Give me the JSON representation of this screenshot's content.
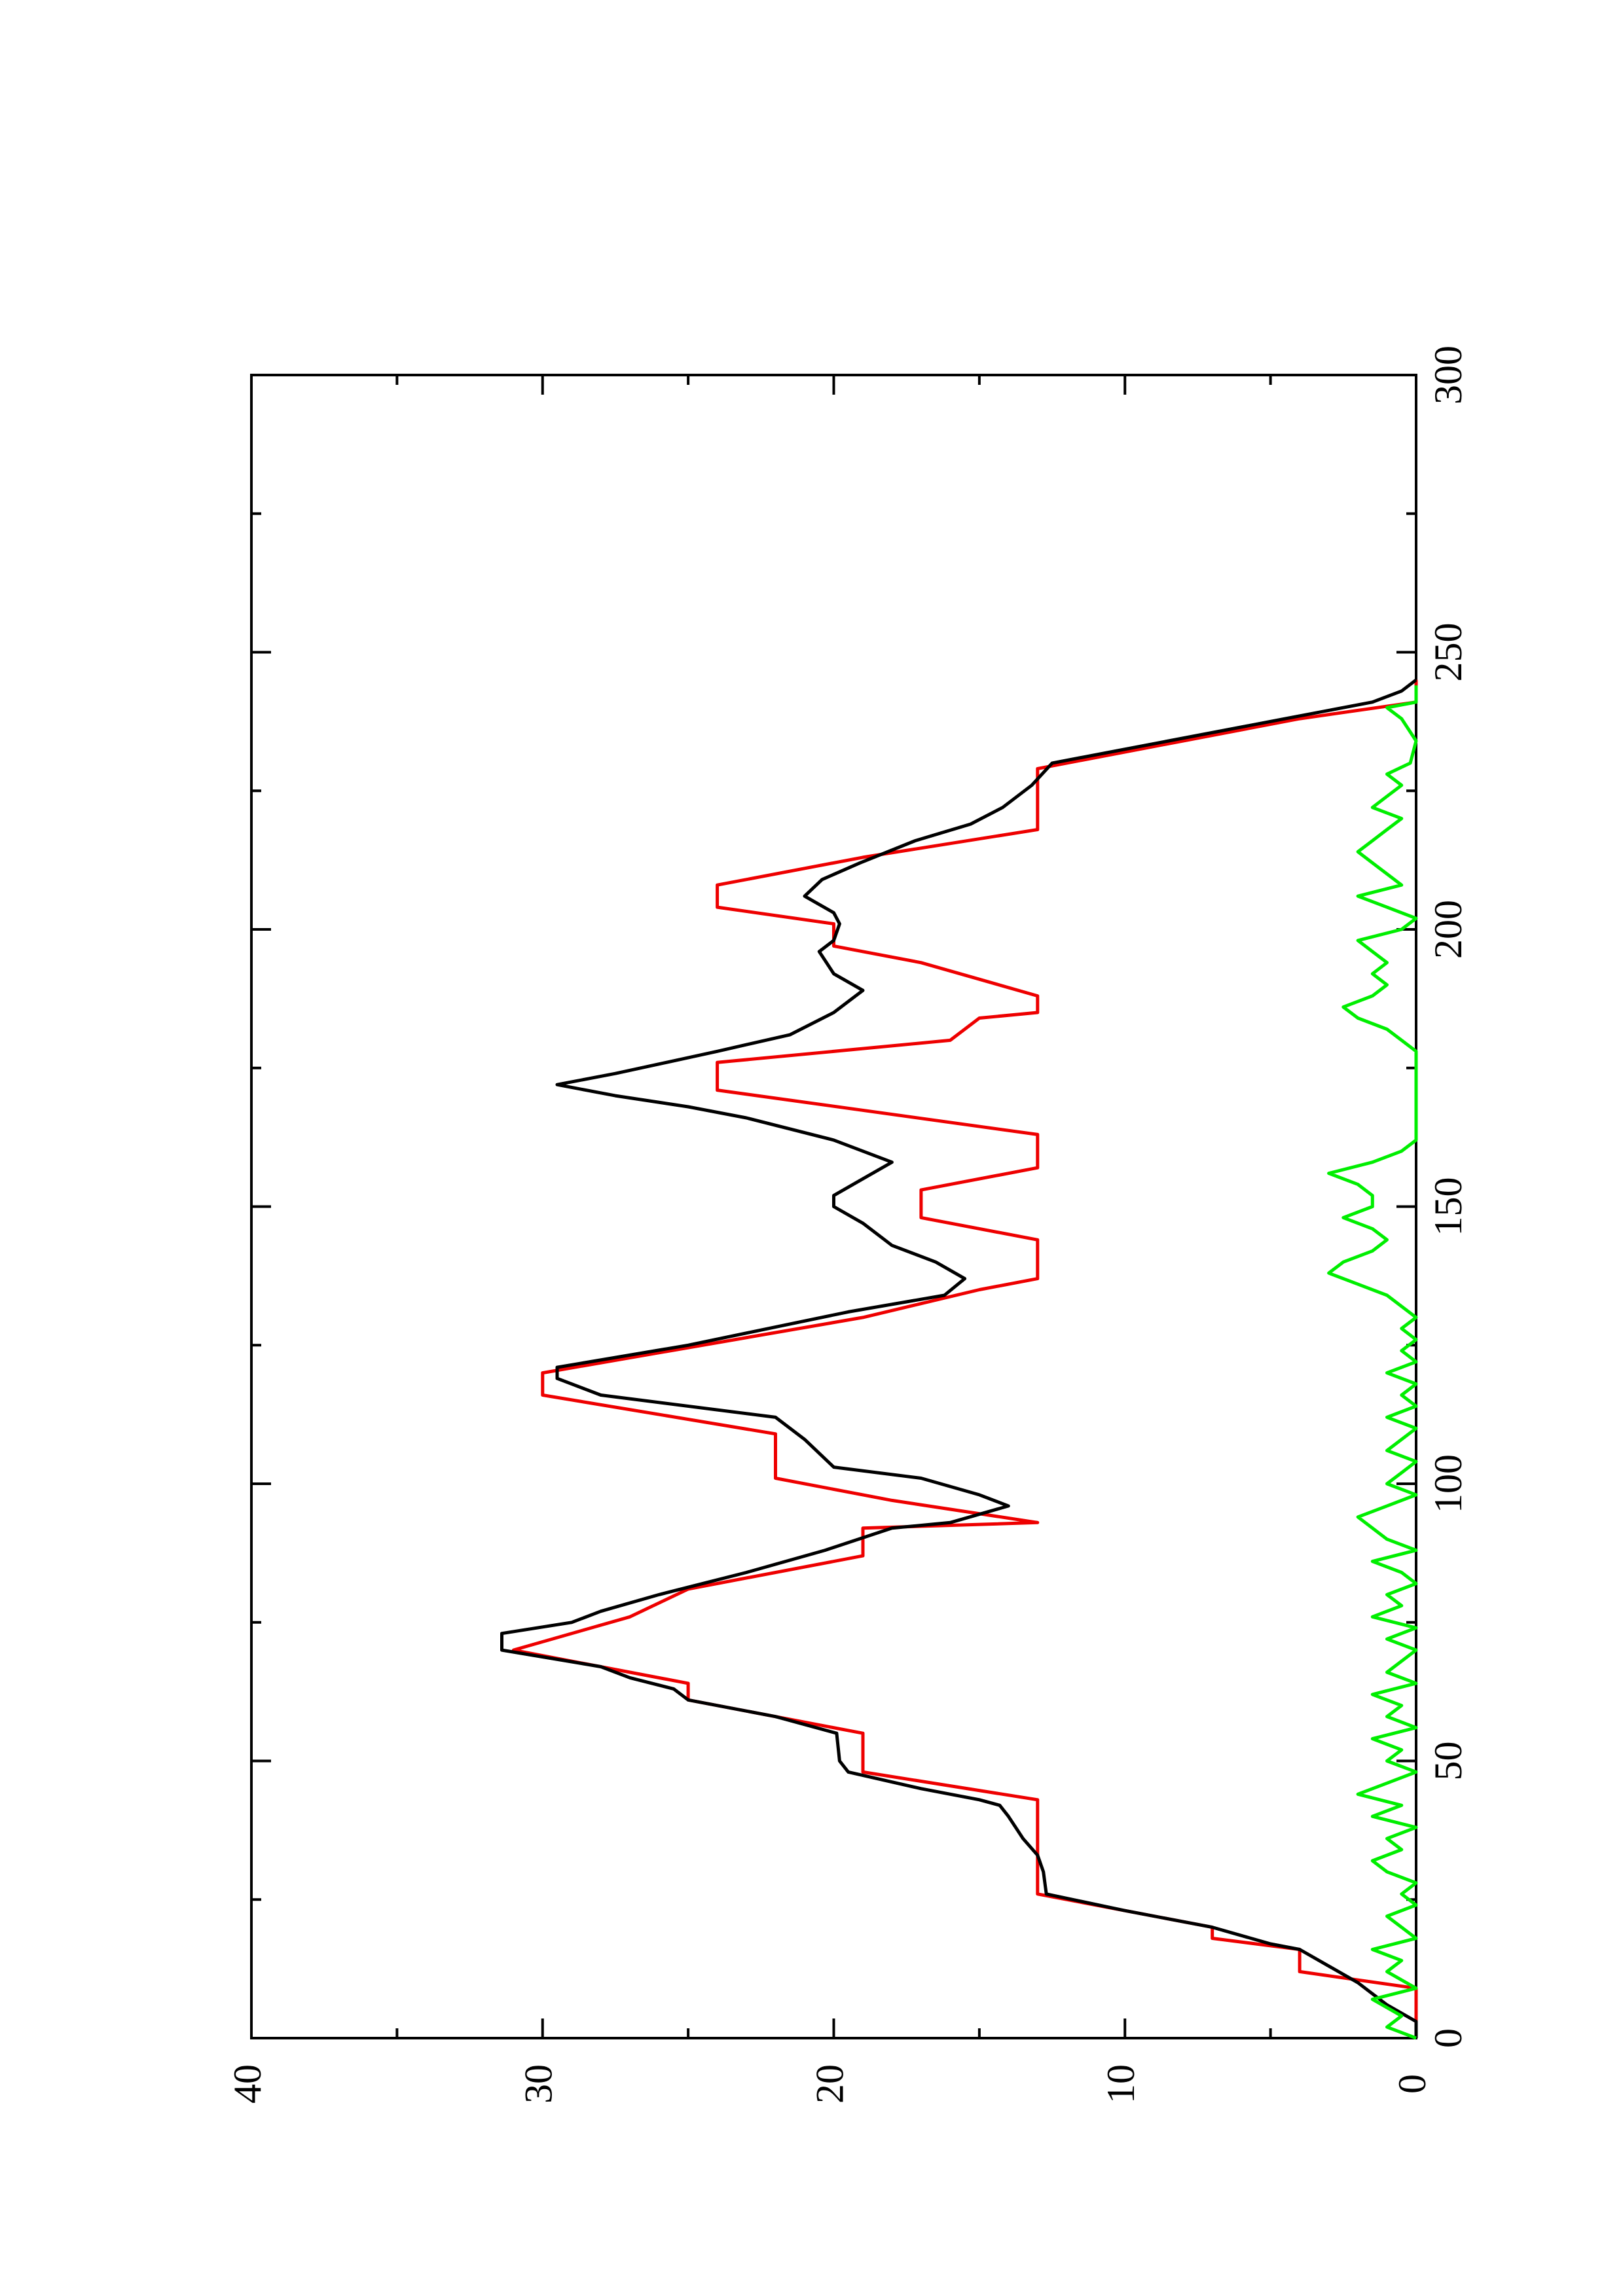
{
  "chart_data": {
    "type": "line",
    "orientation": "rotated 90 degrees counter-clockwise (x axis runs bottom to top, y axis runs right to left)",
    "title": "",
    "xlabel": "",
    "ylabel": "",
    "xlim": [
      0,
      300
    ],
    "ylim": [
      0,
      40
    ],
    "x_major_ticks": [
      0,
      50,
      100,
      150,
      200,
      250,
      300
    ],
    "x_minor_ticks": [
      25,
      75,
      125,
      175,
      225,
      275
    ],
    "y_major_ticks": [
      0,
      10,
      20,
      30,
      40
    ],
    "y_minor_ticks": [
      5,
      15,
      25,
      35
    ],
    "x_tick_labels": [
      "0",
      "50",
      "100",
      "150",
      "200",
      "250",
      "300"
    ],
    "y_tick_labels": [
      "0",
      "10",
      "20",
      "30",
      "40"
    ],
    "grid": false,
    "legend": "none",
    "series": [
      {
        "color": "#ee0000",
        "points": [
          [
            0,
            0
          ],
          [
            9,
            0
          ],
          [
            12,
            4
          ],
          [
            16,
            4
          ],
          [
            18,
            7
          ],
          [
            20,
            7
          ],
          [
            26,
            13
          ],
          [
            43,
            13
          ],
          [
            48,
            19
          ],
          [
            55,
            19
          ],
          [
            61,
            25
          ],
          [
            64,
            25
          ],
          [
            66,
            27
          ],
          [
            70,
            31
          ],
          [
            76,
            27
          ],
          [
            81,
            25
          ],
          [
            87,
            19
          ],
          [
            92,
            19
          ],
          [
            93,
            13
          ],
          [
            97,
            18
          ],
          [
            101,
            22
          ],
          [
            109,
            22
          ],
          [
            116,
            30
          ],
          [
            120,
            30
          ],
          [
            130,
            19
          ],
          [
            135,
            15
          ],
          [
            137,
            13
          ],
          [
            144,
            13
          ],
          [
            148,
            17
          ],
          [
            153,
            17
          ],
          [
            157,
            13
          ],
          [
            163,
            13
          ],
          [
            171,
            24
          ],
          [
            176,
            24
          ],
          [
            180,
            16
          ],
          [
            184,
            15
          ],
          [
            185,
            13
          ],
          [
            188,
            13
          ],
          [
            191,
            15
          ],
          [
            194,
            17
          ],
          [
            197,
            20
          ],
          [
            201,
            20
          ],
          [
            204,
            24
          ],
          [
            208,
            24
          ],
          [
            213,
            19
          ],
          [
            218,
            13
          ],
          [
            229,
            13
          ],
          [
            234,
            8
          ],
          [
            238,
            4
          ],
          [
            241,
            0
          ],
          [
            245,
            0
          ]
        ]
      },
      {
        "color": "#000000",
        "points": [
          [
            0,
            0
          ],
          [
            3,
            0
          ],
          [
            6,
            1
          ],
          [
            10,
            2
          ],
          [
            13,
            3
          ],
          [
            16,
            4
          ],
          [
            17,
            5
          ],
          [
            20,
            7
          ],
          [
            23,
            10
          ],
          [
            26,
            12.7
          ],
          [
            30,
            12.8
          ],
          [
            33,
            13
          ],
          [
            36,
            13.5
          ],
          [
            40,
            14
          ],
          [
            42,
            14.3
          ],
          [
            43,
            15
          ],
          [
            45,
            17
          ],
          [
            48,
            19.5
          ],
          [
            50,
            19.8
          ],
          [
            55,
            19.9
          ],
          [
            58,
            22
          ],
          [
            61,
            25
          ],
          [
            63,
            25.5
          ],
          [
            65,
            27
          ],
          [
            67,
            28
          ],
          [
            70,
            31.4
          ],
          [
            73,
            31.4
          ],
          [
            75,
            29
          ],
          [
            77,
            28
          ],
          [
            80,
            26
          ],
          [
            84,
            23
          ],
          [
            88,
            20.3
          ],
          [
            92,
            18
          ],
          [
            93,
            16
          ],
          [
            96,
            14
          ],
          [
            98,
            15
          ],
          [
            101,
            17
          ],
          [
            103,
            20
          ],
          [
            108,
            21
          ],
          [
            112,
            22
          ],
          [
            116,
            28
          ],
          [
            119,
            29.5
          ],
          [
            121,
            29.5
          ],
          [
            125,
            25
          ],
          [
            131,
            19.5
          ],
          [
            134,
            16.2
          ],
          [
            137,
            15.5
          ],
          [
            140,
            16.5
          ],
          [
            143,
            18
          ],
          [
            147,
            19
          ],
          [
            150,
            20
          ],
          [
            152,
            20
          ],
          [
            155,
            19
          ],
          [
            158,
            18
          ],
          [
            162,
            20
          ],
          [
            166,
            23
          ],
          [
            168,
            25
          ],
          [
            170,
            27.5
          ],
          [
            172,
            29.5
          ],
          [
            174,
            27.5
          ],
          [
            178,
            24
          ],
          [
            181,
            21.5
          ],
          [
            185,
            20
          ],
          [
            189,
            19
          ],
          [
            192,
            20
          ],
          [
            196,
            20.5
          ],
          [
            198,
            20
          ],
          [
            201,
            19.8
          ],
          [
            203,
            20
          ],
          [
            206,
            21
          ],
          [
            209,
            20.4
          ],
          [
            212,
            19.1
          ],
          [
            216,
            17.2
          ],
          [
            219,
            15.3
          ],
          [
            222,
            14.2
          ],
          [
            226,
            13.2
          ],
          [
            230,
            12.5
          ],
          [
            234,
            8.5
          ],
          [
            238,
            4.5
          ],
          [
            241,
            1.5
          ],
          [
            243,
            0.5
          ],
          [
            245,
            0
          ]
        ]
      },
      {
        "color": "#00ee00",
        "points": [
          [
            0,
            0
          ],
          [
            2,
            1
          ],
          [
            4,
            0.5
          ],
          [
            7,
            1.5
          ],
          [
            9,
            0
          ],
          [
            12,
            1
          ],
          [
            14,
            0.5
          ],
          [
            16,
            1.5
          ],
          [
            18,
            0
          ],
          [
            20,
            0.5
          ],
          [
            22,
            1
          ],
          [
            24,
            0
          ],
          [
            26,
            0.5
          ],
          [
            28,
            0
          ],
          [
            30,
            1
          ],
          [
            32,
            1.5
          ],
          [
            34,
            0.5
          ],
          [
            36,
            1
          ],
          [
            38,
            0
          ],
          [
            40,
            1.5
          ],
          [
            42,
            0.5
          ],
          [
            44,
            2
          ],
          [
            46,
            1
          ],
          [
            48,
            0
          ],
          [
            50,
            1
          ],
          [
            52,
            0.5
          ],
          [
            54,
            1.5
          ],
          [
            56,
            0
          ],
          [
            58,
            1
          ],
          [
            60,
            0.5
          ],
          [
            62,
            1.5
          ],
          [
            64,
            0
          ],
          [
            66,
            1
          ],
          [
            68,
            0.5
          ],
          [
            70,
            0
          ],
          [
            72,
            1
          ],
          [
            74,
            0
          ],
          [
            76,
            1.5
          ],
          [
            78,
            0.5
          ],
          [
            80,
            1
          ],
          [
            82,
            0
          ],
          [
            84,
            0.5
          ],
          [
            86,
            1.5
          ],
          [
            88,
            0
          ],
          [
            90,
            1
          ],
          [
            92,
            1.5
          ],
          [
            94,
            2
          ],
          [
            96,
            1
          ],
          [
            98,
            0
          ],
          [
            100,
            1
          ],
          [
            102,
            0.5
          ],
          [
            104,
            0
          ],
          [
            106,
            1
          ],
          [
            108,
            0.5
          ],
          [
            110,
            0
          ],
          [
            112,
            1
          ],
          [
            114,
            0
          ],
          [
            116,
            0.5
          ],
          [
            118,
            0
          ],
          [
            120,
            1
          ],
          [
            122,
            0
          ],
          [
            124,
            0.5
          ],
          [
            126,
            0
          ],
          [
            128,
            0.5
          ],
          [
            130,
            0
          ],
          [
            132,
            0.5
          ],
          [
            134,
            1
          ],
          [
            136,
            2
          ],
          [
            138,
            3
          ],
          [
            140,
            2.5
          ],
          [
            142,
            1.5
          ],
          [
            144,
            1
          ],
          [
            146,
            1.5
          ],
          [
            148,
            2.5
          ],
          [
            150,
            1.5
          ],
          [
            152,
            1.5
          ],
          [
            154,
            2
          ],
          [
            156,
            3
          ],
          [
            158,
            1.5
          ],
          [
            160,
            0.5
          ],
          [
            162,
            0
          ],
          [
            170,
            0
          ],
          [
            178,
            0
          ],
          [
            180,
            0.5
          ],
          [
            182,
            1
          ],
          [
            184,
            2
          ],
          [
            186,
            2.5
          ],
          [
            188,
            1.5
          ],
          [
            190,
            1
          ],
          [
            192,
            1.5
          ],
          [
            194,
            1
          ],
          [
            196,
            1.5
          ],
          [
            198,
            2
          ],
          [
            200,
            0.5
          ],
          [
            202,
            0
          ],
          [
            204,
            1
          ],
          [
            206,
            2
          ],
          [
            208,
            0.5
          ],
          [
            210,
            1
          ],
          [
            212,
            1.5
          ],
          [
            214,
            2
          ],
          [
            216,
            1.5
          ],
          [
            218,
            1
          ],
          [
            220,
            0.5
          ],
          [
            222,
            1.5
          ],
          [
            224,
            1
          ],
          [
            226,
            0.5
          ],
          [
            228,
            1
          ],
          [
            230,
            0.2
          ],
          [
            234,
            0
          ],
          [
            238,
            0.5
          ],
          [
            240,
            1
          ],
          [
            241,
            0
          ],
          [
            244,
            0
          ]
        ]
      }
    ]
  }
}
